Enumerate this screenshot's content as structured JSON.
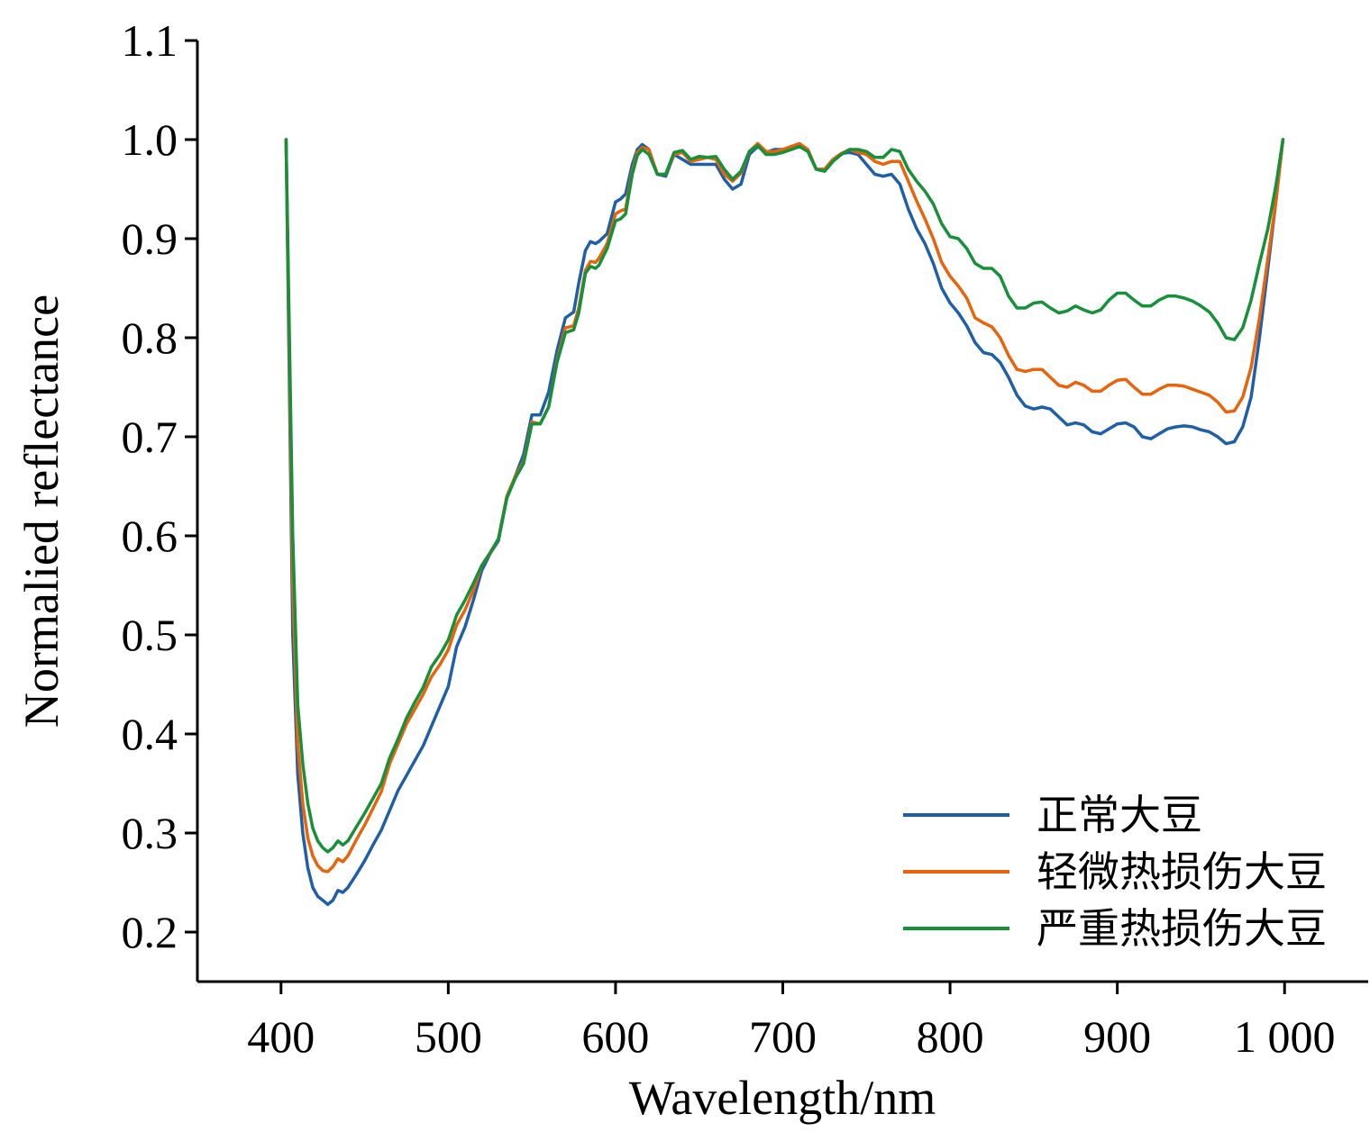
{
  "chart_data": {
    "type": "line",
    "xlabel": "Wavelength/nm",
    "ylabel": "Normalied reflectance",
    "xlim": [
      350,
      1050
    ],
    "ylim": [
      0.15,
      1.1
    ],
    "xticks": [
      400,
      500,
      600,
      700,
      800,
      900,
      1000
    ],
    "xtick_labels": [
      "400",
      "500",
      "600",
      "700",
      "800",
      "900",
      "1 000"
    ],
    "yticks": [
      0.2,
      0.3,
      0.4,
      0.5,
      0.6,
      0.7,
      0.8,
      0.9,
      1.0,
      1.1
    ],
    "ytick_labels": [
      "0.2",
      "0.3",
      "0.4",
      "0.5",
      "0.6",
      "0.7",
      "0.8",
      "0.9",
      "1.0",
      "1.1"
    ],
    "grid": false,
    "legend": "bottom-right",
    "series": [
      {
        "name": "正常大豆",
        "color": "#1f5fa8",
        "x": [
          403,
          407,
          410,
          413,
          416,
          419,
          422,
          425,
          428,
          431,
          434,
          437,
          440,
          445,
          450,
          455,
          460,
          465,
          470,
          475,
          480,
          485,
          490,
          495,
          500,
          505,
          510,
          515,
          520,
          525,
          530,
          535,
          540,
          545,
          550,
          555,
          560,
          565,
          570,
          575,
          578,
          582,
          585,
          588,
          590,
          595,
          600,
          603,
          606,
          610,
          613,
          616,
          620,
          625,
          630,
          635,
          640,
          645,
          650,
          655,
          660,
          665,
          670,
          675,
          680,
          685,
          690,
          695,
          700,
          705,
          710,
          715,
          720,
          725,
          730,
          735,
          740,
          745,
          750,
          755,
          760,
          765,
          770,
          775,
          780,
          785,
          790,
          795,
          800,
          805,
          810,
          815,
          820,
          825,
          830,
          835,
          840,
          845,
          850,
          855,
          860,
          865,
          870,
          875,
          880,
          885,
          890,
          895,
          900,
          905,
          910,
          915,
          920,
          925,
          930,
          935,
          940,
          945,
          950,
          955,
          960,
          965,
          970,
          975,
          980,
          985,
          990,
          995,
          999
        ],
        "y": [
          1.0,
          0.5,
          0.36,
          0.3,
          0.265,
          0.245,
          0.236,
          0.232,
          0.228,
          0.232,
          0.242,
          0.24,
          0.245,
          0.258,
          0.272,
          0.288,
          0.303,
          0.323,
          0.343,
          0.358,
          0.373,
          0.388,
          0.408,
          0.428,
          0.448,
          0.488,
          0.508,
          0.535,
          0.565,
          0.582,
          0.595,
          0.638,
          0.66,
          0.682,
          0.722,
          0.722,
          0.745,
          0.787,
          0.82,
          0.826,
          0.855,
          0.888,
          0.897,
          0.895,
          0.897,
          0.905,
          0.937,
          0.94,
          0.945,
          0.975,
          0.99,
          0.995,
          0.99,
          0.965,
          0.963,
          0.985,
          0.98,
          0.975,
          0.975,
          0.975,
          0.975,
          0.96,
          0.95,
          0.955,
          0.985,
          0.993,
          0.987,
          0.99,
          0.99,
          0.99,
          0.993,
          0.99,
          0.97,
          0.97,
          0.98,
          0.986,
          0.987,
          0.985,
          0.975,
          0.965,
          0.963,
          0.965,
          0.955,
          0.93,
          0.91,
          0.895,
          0.875,
          0.85,
          0.835,
          0.825,
          0.812,
          0.795,
          0.785,
          0.783,
          0.775,
          0.76,
          0.742,
          0.731,
          0.728,
          0.73,
          0.728,
          0.72,
          0.712,
          0.714,
          0.712,
          0.705,
          0.703,
          0.708,
          0.713,
          0.714,
          0.71,
          0.7,
          0.698,
          0.703,
          0.708,
          0.71,
          0.711,
          0.71,
          0.707,
          0.705,
          0.7,
          0.693,
          0.695,
          0.71,
          0.74,
          0.8,
          0.87,
          0.94,
          1.0
        ]
      },
      {
        "name": "轻微热损伤大豆",
        "color": "#e8640c",
        "x": [
          403,
          407,
          410,
          413,
          416,
          419,
          422,
          425,
          428,
          431,
          434,
          437,
          440,
          445,
          450,
          455,
          460,
          465,
          470,
          475,
          480,
          485,
          490,
          495,
          500,
          505,
          510,
          515,
          520,
          525,
          530,
          535,
          540,
          545,
          550,
          555,
          560,
          565,
          570,
          575,
          578,
          582,
          585,
          588,
          590,
          595,
          600,
          603,
          606,
          610,
          613,
          616,
          620,
          625,
          630,
          635,
          640,
          645,
          650,
          655,
          660,
          665,
          670,
          675,
          680,
          685,
          690,
          695,
          700,
          705,
          710,
          715,
          720,
          725,
          730,
          735,
          740,
          745,
          750,
          755,
          760,
          765,
          770,
          775,
          780,
          785,
          790,
          795,
          800,
          805,
          810,
          815,
          820,
          825,
          830,
          835,
          840,
          845,
          850,
          855,
          860,
          865,
          870,
          875,
          880,
          885,
          890,
          895,
          900,
          905,
          910,
          915,
          920,
          925,
          930,
          935,
          940,
          945,
          950,
          955,
          960,
          965,
          970,
          975,
          980,
          985,
          990,
          995,
          999
        ],
        "y": [
          1.0,
          0.55,
          0.39,
          0.33,
          0.295,
          0.277,
          0.267,
          0.262,
          0.261,
          0.266,
          0.274,
          0.271,
          0.277,
          0.293,
          0.308,
          0.325,
          0.342,
          0.37,
          0.39,
          0.41,
          0.425,
          0.44,
          0.458,
          0.47,
          0.485,
          0.51,
          0.525,
          0.545,
          0.57,
          0.582,
          0.597,
          0.64,
          0.66,
          0.675,
          0.715,
          0.713,
          0.73,
          0.777,
          0.81,
          0.812,
          0.83,
          0.868,
          0.877,
          0.876,
          0.88,
          0.895,
          0.925,
          0.928,
          0.93,
          0.968,
          0.987,
          0.992,
          0.99,
          0.965,
          0.965,
          0.985,
          0.987,
          0.978,
          0.98,
          0.982,
          0.98,
          0.965,
          0.958,
          0.966,
          0.988,
          0.996,
          0.988,
          0.988,
          0.99,
          0.993,
          0.996,
          0.99,
          0.97,
          0.97,
          0.98,
          0.986,
          0.99,
          0.987,
          0.985,
          0.978,
          0.975,
          0.978,
          0.978,
          0.958,
          0.938,
          0.92,
          0.9,
          0.876,
          0.862,
          0.852,
          0.84,
          0.82,
          0.815,
          0.811,
          0.8,
          0.782,
          0.768,
          0.766,
          0.768,
          0.768,
          0.76,
          0.752,
          0.75,
          0.755,
          0.752,
          0.746,
          0.746,
          0.752,
          0.757,
          0.758,
          0.75,
          0.743,
          0.743,
          0.748,
          0.752,
          0.752,
          0.751,
          0.748,
          0.745,
          0.742,
          0.735,
          0.725,
          0.726,
          0.74,
          0.77,
          0.82,
          0.88,
          0.94,
          1.0
        ]
      },
      {
        "name": "严重热损伤大豆",
        "color": "#16913a",
        "x": [
          403,
          407,
          410,
          413,
          416,
          419,
          422,
          425,
          428,
          431,
          434,
          437,
          440,
          445,
          450,
          455,
          460,
          465,
          470,
          475,
          480,
          485,
          490,
          495,
          500,
          505,
          510,
          515,
          520,
          525,
          530,
          535,
          540,
          545,
          550,
          555,
          560,
          565,
          570,
          575,
          578,
          582,
          585,
          588,
          590,
          595,
          600,
          603,
          606,
          610,
          613,
          616,
          620,
          625,
          630,
          635,
          640,
          645,
          650,
          655,
          660,
          665,
          670,
          675,
          680,
          685,
          690,
          695,
          700,
          705,
          710,
          715,
          720,
          725,
          730,
          735,
          740,
          745,
          750,
          755,
          760,
          765,
          770,
          775,
          780,
          785,
          790,
          795,
          800,
          805,
          810,
          815,
          820,
          825,
          830,
          835,
          840,
          845,
          850,
          855,
          860,
          865,
          870,
          875,
          880,
          885,
          890,
          895,
          900,
          905,
          910,
          915,
          920,
          925,
          930,
          935,
          940,
          945,
          950,
          955,
          960,
          965,
          970,
          975,
          980,
          985,
          990,
          995,
          999
        ],
        "y": [
          1.0,
          0.6,
          0.43,
          0.37,
          0.33,
          0.305,
          0.292,
          0.285,
          0.281,
          0.285,
          0.292,
          0.288,
          0.292,
          0.306,
          0.32,
          0.335,
          0.35,
          0.376,
          0.395,
          0.416,
          0.432,
          0.447,
          0.468,
          0.48,
          0.495,
          0.52,
          0.535,
          0.552,
          0.57,
          0.583,
          0.597,
          0.638,
          0.658,
          0.673,
          0.713,
          0.713,
          0.73,
          0.775,
          0.805,
          0.808,
          0.825,
          0.865,
          0.872,
          0.87,
          0.873,
          0.89,
          0.918,
          0.92,
          0.925,
          0.965,
          0.984,
          0.99,
          0.985,
          0.965,
          0.965,
          0.987,
          0.989,
          0.98,
          0.983,
          0.982,
          0.983,
          0.97,
          0.96,
          0.968,
          0.988,
          0.994,
          0.985,
          0.985,
          0.987,
          0.99,
          0.993,
          0.988,
          0.97,
          0.968,
          0.978,
          0.985,
          0.99,
          0.99,
          0.988,
          0.982,
          0.982,
          0.99,
          0.988,
          0.97,
          0.958,
          0.948,
          0.935,
          0.915,
          0.902,
          0.9,
          0.89,
          0.875,
          0.87,
          0.87,
          0.862,
          0.842,
          0.83,
          0.83,
          0.835,
          0.836,
          0.83,
          0.825,
          0.827,
          0.832,
          0.828,
          0.825,
          0.828,
          0.838,
          0.845,
          0.845,
          0.838,
          0.832,
          0.832,
          0.838,
          0.842,
          0.842,
          0.84,
          0.837,
          0.832,
          0.826,
          0.815,
          0.8,
          0.798,
          0.81,
          0.838,
          0.875,
          0.91,
          0.955,
          1.0
        ]
      }
    ]
  }
}
